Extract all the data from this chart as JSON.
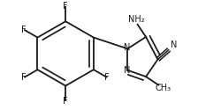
{
  "bg_color": "#ffffff",
  "line_color": "#1a1a1a",
  "lw": 1.3,
  "fig_width": 2.24,
  "fig_height": 1.25,
  "dpi": 100,
  "fs": 7.0,
  "fs_sub": 6.0,
  "bx": -0.55,
  "by": 0.0,
  "br": 0.3,
  "N1": [
    0.025,
    0.045
  ],
  "N2": [
    0.025,
    -0.155
  ],
  "C3": [
    0.195,
    -0.215
  ],
  "C4": [
    0.305,
    -0.055
  ],
  "C5": [
    0.195,
    0.155
  ],
  "xlim": [
    -1.1,
    0.62
  ],
  "ylim": [
    -0.52,
    0.48
  ]
}
